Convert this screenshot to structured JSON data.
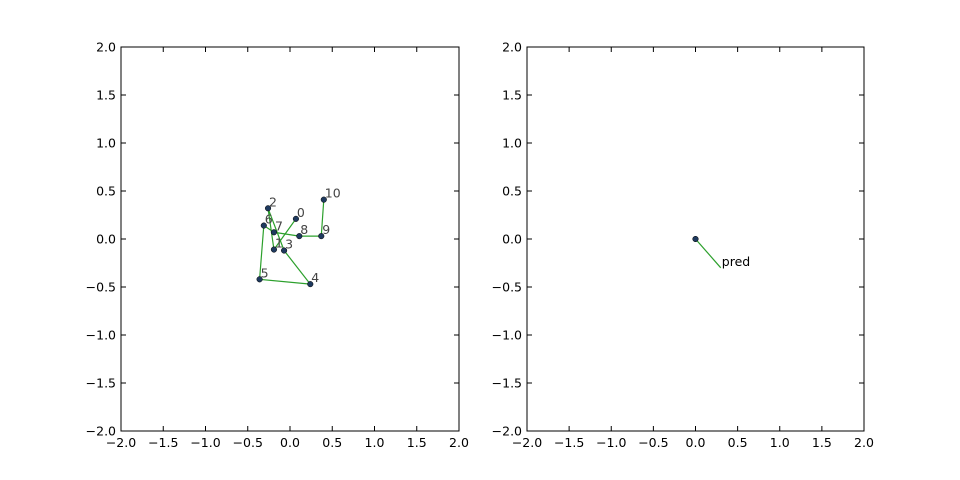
{
  "chart_data": [
    {
      "type": "line",
      "x": [
        0.07,
        -0.19,
        -0.26,
        -0.07,
        0.24,
        -0.36,
        -0.31,
        -0.19,
        0.11,
        0.37,
        0.4
      ],
      "y": [
        0.21,
        -0.11,
        0.32,
        -0.12,
        -0.47,
        -0.42,
        0.14,
        0.07,
        0.03,
        0.03,
        0.41
      ],
      "labels": [
        "0",
        "1",
        "2",
        "3",
        "4",
        "5",
        "6",
        "7",
        "8",
        "9",
        "10"
      ],
      "markers": [
        true,
        true,
        true,
        true,
        true,
        true,
        true,
        true,
        true,
        true,
        true
      ],
      "line_color": "#2ca02c",
      "marker_color": "#1f3a5f",
      "xlim": [
        -2,
        2
      ],
      "ylim": [
        -2,
        2
      ],
      "xticks": [
        {
          "value": -2,
          "label": "−2.0"
        },
        {
          "value": -1.5,
          "label": "−1.5"
        },
        {
          "value": -1,
          "label": "−1.0"
        },
        {
          "value": -0.5,
          "label": "−0.5"
        },
        {
          "value": 0,
          "label": "0.0"
        },
        {
          "value": 0.5,
          "label": "0.5"
        },
        {
          "value": 1,
          "label": "1.0"
        },
        {
          "value": 1.5,
          "label": "1.5"
        },
        {
          "value": 2,
          "label": "2.0"
        }
      ],
      "yticks": [
        {
          "value": -2,
          "label": "−2.0"
        },
        {
          "value": -1.5,
          "label": "−1.5"
        },
        {
          "value": -1,
          "label": "−1.0"
        },
        {
          "value": -0.5,
          "label": "−0.5"
        },
        {
          "value": 0,
          "label": "0.0"
        },
        {
          "value": 0.5,
          "label": "0.5"
        },
        {
          "value": 1,
          "label": "1.0"
        },
        {
          "value": 1.5,
          "label": "1.5"
        },
        {
          "value": 2,
          "label": "2.0"
        }
      ]
    },
    {
      "type": "line",
      "x": [
        0,
        0.3
      ],
      "y": [
        0,
        -0.3
      ],
      "labels": [
        null,
        "pred"
      ],
      "markers": [
        true,
        false
      ],
      "line_color": "#2ca02c",
      "marker_color": "#1f3a5f",
      "xlim": [
        -2,
        2
      ],
      "ylim": [
        -2,
        2
      ],
      "xticks": [
        {
          "value": -2,
          "label": "−2.0"
        },
        {
          "value": -1.5,
          "label": "−1.5"
        },
        {
          "value": -1,
          "label": "−1.0"
        },
        {
          "value": -0.5,
          "label": "−0.5"
        },
        {
          "value": 0,
          "label": "0.0"
        },
        {
          "value": 0.5,
          "label": "0.5"
        },
        {
          "value": 1,
          "label": "1.0"
        },
        {
          "value": 1.5,
          "label": "1.5"
        },
        {
          "value": 2,
          "label": "2.0"
        }
      ],
      "yticks": [
        {
          "value": -2,
          "label": "−2.0"
        },
        {
          "value": -1.5,
          "label": "−1.5"
        },
        {
          "value": -1,
          "label": "−1.0"
        },
        {
          "value": -0.5,
          "label": "−0.5"
        },
        {
          "value": 0,
          "label": "0.0"
        },
        {
          "value": 0.5,
          "label": "0.5"
        },
        {
          "value": 1,
          "label": "1.0"
        },
        {
          "value": 1.5,
          "label": "1.5"
        },
        {
          "value": 2,
          "label": "2.0"
        }
      ]
    }
  ]
}
